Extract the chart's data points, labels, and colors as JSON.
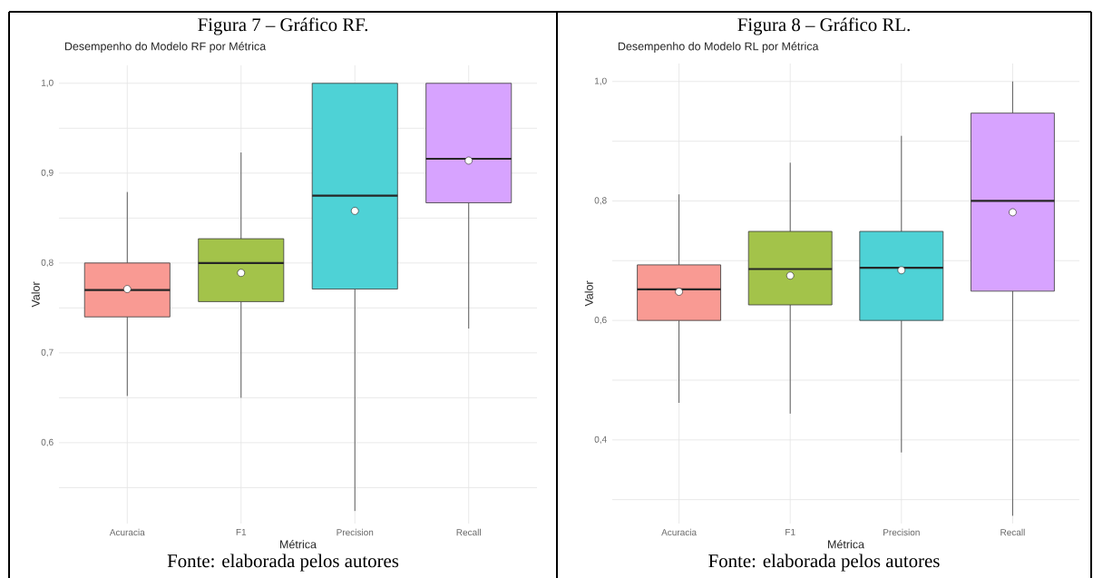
{
  "chart_data": [
    {
      "type": "box",
      "title": "Figura 7 – Gráfico RF.",
      "subtitle": "Desempenho do Modelo RF por Métrica",
      "xlabel": "Métrica",
      "ylabel": "Valor",
      "categories": [
        "Acuracia",
        "F1",
        "Precision",
        "Recall"
      ],
      "colors": [
        "#f99a93",
        "#a3c34a",
        "#4ed2d6",
        "#d7a3ff"
      ],
      "boxes": [
        {
          "low": 0.652,
          "q1": 0.74,
          "median": 0.77,
          "q3": 0.8,
          "high": 0.879,
          "mean": 0.771
        },
        {
          "low": 0.65,
          "q1": 0.757,
          "median": 0.8,
          "q3": 0.827,
          "high": 0.923,
          "mean": 0.789
        },
        {
          "low": 0.524,
          "q1": 0.771,
          "median": 0.875,
          "q3": 1.0,
          "high": 1.0,
          "mean": 0.858
        },
        {
          "low": 0.727,
          "q1": 0.867,
          "median": 0.916,
          "q3": 1.0,
          "high": 1.0,
          "mean": 0.914
        }
      ],
      "ylim": [
        0.51,
        1.02
      ],
      "yticks": [
        {
          "value": 0.55,
          "label": null
        },
        {
          "value": 0.6,
          "label": "0,6"
        },
        {
          "value": 0.65,
          "label": null
        },
        {
          "value": 0.7,
          "label": "0,7"
        },
        {
          "value": 0.75,
          "label": null
        },
        {
          "value": 0.8,
          "label": "0,8"
        },
        {
          "value": 0.85,
          "label": null
        },
        {
          "value": 0.9,
          "label": "0,9"
        },
        {
          "value": 0.95,
          "label": null
        },
        {
          "value": 1.0,
          "label": "1,0"
        }
      ],
      "grid": true,
      "annotations": [
        "Fonte: elaborada pelos autores"
      ]
    },
    {
      "type": "box",
      "title": "Figura 8 – Gráfico RL.",
      "subtitle": "Desempenho do Modelo RL por Métrica",
      "xlabel": "Métrica",
      "ylabel": "Valor",
      "categories": [
        "Acuracia",
        "F1",
        "Precision",
        "Recall"
      ],
      "colors": [
        "#f99a93",
        "#a3c34a",
        "#4ed2d6",
        "#d7a3ff"
      ],
      "boxes": [
        {
          "low": 0.462,
          "q1": 0.6,
          "median": 0.652,
          "q3": 0.693,
          "high": 0.811,
          "mean": 0.648
        },
        {
          "low": 0.444,
          "q1": 0.626,
          "median": 0.686,
          "q3": 0.749,
          "high": 0.864,
          "mean": 0.675
        },
        {
          "low": 0.379,
          "q1": 0.6,
          "median": 0.688,
          "q3": 0.749,
          "high": 0.909,
          "mean": 0.684
        },
        {
          "low": 0.273,
          "q1": 0.649,
          "median": 0.8,
          "q3": 0.947,
          "high": 1.0,
          "mean": 0.781
        }
      ],
      "ylim": [
        0.26,
        1.03
      ],
      "yticks": [
        {
          "value": 0.3,
          "label": null
        },
        {
          "value": 0.4,
          "label": "0,4"
        },
        {
          "value": 0.5,
          "label": null
        },
        {
          "value": 0.6,
          "label": "0,6"
        },
        {
          "value": 0.7,
          "label": null
        },
        {
          "value": 0.8,
          "label": "0,8"
        },
        {
          "value": 0.9,
          "label": null
        },
        {
          "value": 1.0,
          "label": "1,0"
        }
      ],
      "grid": true,
      "annotations": [
        "Fonte: elaborada pelos autores"
      ]
    }
  ]
}
